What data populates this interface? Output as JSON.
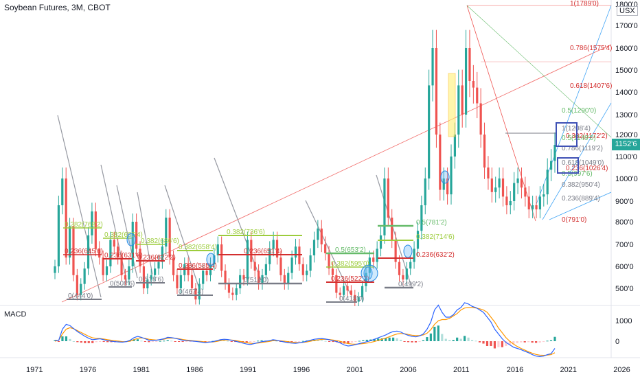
{
  "header": {
    "title": "Soybean Futures, 3M, CBOT"
  },
  "macd": {
    "label": "MACD",
    "ticks": [
      "1000",
      "0"
    ]
  },
  "price_axis": {
    "unit": "USX",
    "last_price": "1152'6",
    "ticks": [
      "1800'0",
      "1700'0",
      "1600'0",
      "1500'0",
      "1400'0",
      "1300'0",
      "1200'0",
      "1100'0",
      "1000'0",
      "900'0",
      "800'0",
      "700'0",
      "600'0",
      "500'0"
    ]
  },
  "colors": {
    "up": "#26a69a",
    "down": "#ef5350",
    "fib_red": "#d32f2f",
    "fib_green": "#66bb6a",
    "fib_lime": "#9ccc3c",
    "fib_gray": "#787b86",
    "macd_line": "#2962ff",
    "signal_line": "#ff9800"
  },
  "chart_data": {
    "type": "candlestick",
    "xlabel": "",
    "ylabel": "",
    "x_ticks": [
      "1971",
      "1976",
      "1981",
      "1986",
      "1991",
      "1996",
      "2001",
      "2006",
      "2011",
      "2016",
      "2021",
      "2026"
    ],
    "ylim": [
      420,
      1830
    ],
    "close_series": {
      "start_year": 1973,
      "values": [
        600,
        880,
        1000,
        640,
        780,
        560,
        470,
        520,
        590,
        740,
        850,
        680,
        640,
        560,
        600,
        720,
        690,
        640,
        560,
        540,
        600,
        800,
        680,
        600,
        500,
        540,
        560,
        590,
        620,
        690,
        820,
        640,
        560,
        500,
        560,
        610,
        560,
        500,
        450,
        520,
        580,
        560,
        610,
        650,
        700,
        580,
        520,
        480,
        470,
        500,
        560,
        540,
        720,
        620,
        580,
        520,
        560,
        610,
        680,
        720,
        640,
        560,
        520,
        570,
        640,
        690,
        610,
        560,
        580,
        650,
        720,
        770,
        700,
        660,
        590,
        560,
        480,
        470,
        510,
        490,
        470,
        440,
        460,
        510,
        570,
        640,
        620,
        680,
        740,
        1000,
        820,
        720,
        620,
        560,
        540,
        590,
        620,
        680,
        760,
        880,
        1000,
        1430,
        1600,
        1200,
        950,
        1000,
        930,
        1100,
        1200,
        1430,
        1300,
        1600,
        1450,
        1420,
        1350,
        1200,
        1050,
        1000,
        940,
        960,
        1000,
        920,
        880,
        900,
        980,
        1000,
        960,
        920,
        860,
        880,
        860,
        920,
        930,
        1040,
        1080,
        1153
      ]
    },
    "fib_levels": [
      {
        "label": "0.382(768'2)"
      },
      {
        "label": "0.236(645'6)"
      },
      {
        "label": "0(444'0)"
      },
      {
        "label": "0.382(685'4)"
      },
      {
        "label": "0.236(631'6)"
      },
      {
        "label": "0(508'6)"
      },
      {
        "label": "0.382(686'6)"
      },
      {
        "label": "0.236(622'2)"
      },
      {
        "label": "0(518'6)"
      },
      {
        "label": "0.382(658'4)"
      },
      {
        "label": "0.236(585'4)"
      },
      {
        "label": "0(467'4)"
      },
      {
        "label": "0.382(736'6)"
      },
      {
        "label": "0.236(651'4)"
      },
      {
        "label": "0(514'0)"
      },
      {
        "label": "0.5(653'2)"
      },
      {
        "label": "0.382(595'0)"
      },
      {
        "label": "0.236(522'2)"
      },
      {
        "label": "0(418'0)"
      },
      {
        "label": "0.5(781'2)"
      },
      {
        "label": "0.382(714'6)"
      },
      {
        "label": "0.236(632'2)"
      },
      {
        "label": "0(499'2)"
      },
      {
        "label": "1(1789'0)"
      },
      {
        "label": "0.786(1575'4)"
      },
      {
        "label": "0.618(1407'6)"
      },
      {
        "label": "0.5(1290'0)"
      },
      {
        "label": "0.382(1172'2)"
      },
      {
        "label": "0.236(1026'4)"
      },
      {
        "label": "0(791'0)"
      },
      {
        "label": "1(1208'4)"
      },
      {
        "label": "0.786(1119'2)"
      },
      {
        "label": "0.618(1049'0)"
      },
      {
        "label": "0.5(997'6)"
      },
      {
        "label": "0.382(950'4)"
      },
      {
        "label": "0.236(889'4)"
      },
      {
        "label": "0(791'0)"
      },
      {
        "label": "0.5(1149'0)"
      }
    ],
    "macd": {
      "ylim": [
        -700,
        1700
      ],
      "macd_line": [
        40,
        30,
        500,
        700,
        650,
        520,
        400,
        300,
        200,
        120,
        60,
        80,
        100,
        60,
        20,
        0,
        -20,
        -30,
        -40,
        -20,
        40,
        140,
        200,
        160,
        100,
        40,
        30,
        40,
        70,
        100,
        160,
        150,
        120,
        80,
        40,
        20,
        10,
        0,
        -20,
        -40,
        -60,
        -40,
        -20,
        20,
        60,
        80,
        70,
        40,
        0,
        -40,
        -80,
        -120,
        -140,
        -100,
        -60,
        -20,
        0,
        20,
        60,
        40,
        0,
        -30,
        -60,
        -80,
        -90,
        -70,
        -40,
        0,
        40,
        80,
        100,
        110,
        90,
        60,
        20,
        -20,
        -80,
        -160,
        -200,
        -180,
        -140,
        -100,
        -60,
        -20,
        20,
        80,
        140,
        200,
        260,
        340,
        400,
        420,
        380,
        300,
        240,
        200,
        180,
        220,
        300,
        500,
        800,
        1300,
        1500,
        1200,
        1000,
        1000,
        1100,
        1300,
        1400,
        1600,
        1550,
        1450,
        1400,
        1300,
        1200,
        1000,
        800,
        500,
        300,
        100,
        -50,
        -150,
        -250,
        -300,
        -350,
        -420,
        -480,
        -560,
        -620,
        -640,
        -620,
        -560,
        -520,
        -300
      ],
      "signal_line": [
        0,
        40,
        300,
        500,
        560,
        520,
        440,
        360,
        280,
        200,
        140,
        120,
        110,
        90,
        60,
        40,
        20,
        0,
        -20,
        -20,
        0,
        60,
        120,
        140,
        120,
        80,
        60,
        50,
        60,
        80,
        120,
        130,
        125,
        100,
        70,
        45,
        30,
        15,
        0,
        -15,
        -30,
        -35,
        -30,
        -10,
        20,
        45,
        55,
        50,
        30,
        0,
        -30,
        -60,
        -90,
        -95,
        -80,
        -55,
        -30,
        -10,
        20,
        25,
        15,
        0,
        -20,
        -40,
        -55,
        -60,
        -50,
        -30,
        0,
        30,
        55,
        75,
        80,
        70,
        50,
        25,
        -10,
        -60,
        -100,
        -120,
        -125,
        -115,
        -100,
        -80,
        -50,
        -10,
        30,
        80,
        130,
        190,
        250,
        300,
        320,
        310,
        280,
        250,
        230,
        230,
        260,
        330,
        480,
        700,
        850,
        900,
        900,
        950,
        1050,
        1150,
        1300,
        1380,
        1400,
        1400,
        1380,
        1350,
        1300,
        1200,
        1000,
        800,
        550,
        350,
        150,
        0,
        -120,
        -220,
        -300,
        -370,
        -440,
        -500,
        -550,
        -580,
        -590,
        -580,
        -560,
        -480
      ]
    }
  }
}
